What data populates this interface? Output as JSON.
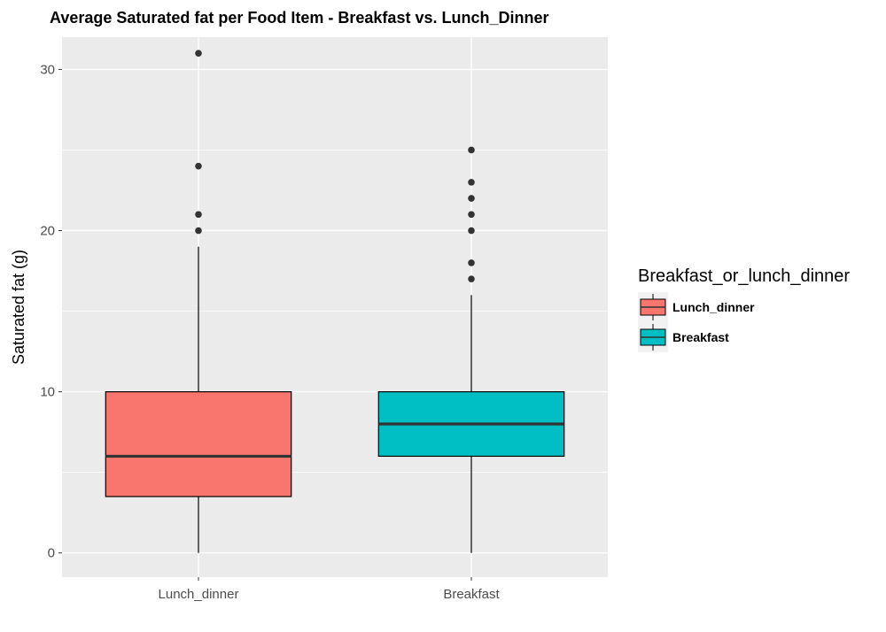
{
  "chart_data": {
    "type": "boxplot",
    "title": "Average Saturated fat per Food Item - Breakfast vs. Lunch_Dinner",
    "xlabel": "",
    "ylabel": "Saturated fat (g)",
    "ylim": [
      -1.5,
      32
    ],
    "yticks": [
      0,
      10,
      20,
      30
    ],
    "grid": true,
    "legend": {
      "title": "Breakfast_or_lunch_dinner",
      "placement": "right",
      "entries": [
        {
          "label": "Lunch_dinner",
          "color": "#F8766D"
        },
        {
          "label": "Breakfast",
          "color": "#00BFC4"
        }
      ]
    },
    "categories": [
      "Lunch_dinner",
      "Breakfast"
    ],
    "series": [
      {
        "category": "Lunch_dinner",
        "color": "#F8766D",
        "whisker_low": 0,
        "q1": 3.5,
        "median": 6,
        "q3": 10,
        "whisker_high": 19,
        "outliers": [
          20,
          21,
          24,
          31
        ]
      },
      {
        "category": "Breakfast",
        "color": "#00BFC4",
        "whisker_low": 0,
        "q1": 6,
        "median": 8,
        "q3": 10,
        "whisker_high": 16,
        "outliers": [
          17,
          18,
          20,
          21,
          22,
          23,
          25
        ]
      }
    ]
  }
}
